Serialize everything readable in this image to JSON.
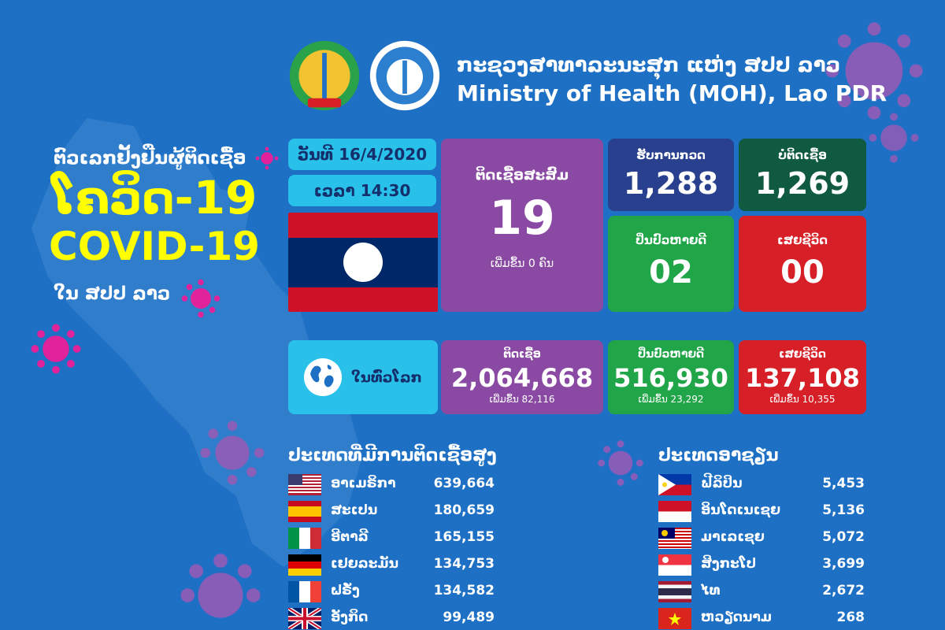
{
  "header": {
    "lao_title": "ກະຊວງສາທາລະນະສຸກ ແຫ່ງ ສປປ ລາວ",
    "en_title": "Ministry of Health (MOH), Lao PDR"
  },
  "titles": {
    "subtitle": "ຕົວເລກຢັ້ງຢືນຜູ້ຕິດເຊື້ອ",
    "big_lao": "ໂຄວິດ-19",
    "big_en": "COVID-19",
    "place": "ໃນ ສປປ ລາວ"
  },
  "date_label": "ວັນທີ 16/4/2020",
  "time_label": "ເວລາ 14:30",
  "lao_stats": {
    "cumulative": {
      "label": "ຕິດເຊື້ອສະສົມ",
      "value": "19",
      "sub": "ເພີ່ມຂຶ້ນ 0 ຄົນ"
    },
    "tested": {
      "label": "ຮັບການກວດ",
      "value": "1,288"
    },
    "negative": {
      "label": "ບໍ່ຕິດເຊື້ອ",
      "value": "1,269"
    },
    "recovered": {
      "label": "ປິ່ນປົວຫາຍດີ",
      "value": "02"
    },
    "deaths": {
      "label": "ເສຍຊີວິດ",
      "value": "00"
    }
  },
  "world": {
    "label": "ໃນທົ່ວໂລກ",
    "infected": {
      "label": "ຕິດເຊື້ອ",
      "value": "2,064,668",
      "sub": "ເພີ່ມຂຶ້ນ 82,116"
    },
    "recovered": {
      "label": "ປິ່ນປົວຫາຍດີ",
      "value": "516,930",
      "sub": "ເພີ່ມຂຶ້ນ 23,292"
    },
    "deaths": {
      "label": "ເສຍຊີວິດ",
      "value": "137,108",
      "sub": "ເພີ່ມຂຶ້ນ 10,355"
    }
  },
  "top_countries": {
    "title": "ປະເທດທີ່ມີການຕິດເຊື້ອສູງ",
    "rows": [
      {
        "name": "ອາເມຣິກາ",
        "value": "639,664",
        "flag": "us-flag"
      },
      {
        "name": "ສະເປນ",
        "value": "180,659",
        "flag": "spain-flag"
      },
      {
        "name": "ອີຕາລີ",
        "value": "165,155",
        "flag": "italy-flag"
      },
      {
        "name": "ເຢຍລະມັນ",
        "value": "134,753",
        "flag": "germany-flag"
      },
      {
        "name": "ຝຣັ່ງ",
        "value": "134,582",
        "flag": "france-flag"
      },
      {
        "name": "ອັງກິດ",
        "value": "99,489",
        "flag": "uk-flag"
      }
    ]
  },
  "asean": {
    "title": "ປະເທດອາຊຽນ",
    "rows": [
      {
        "name": "ຟີລິປິນ",
        "value": "5,453",
        "flag": "philippines-flag"
      },
      {
        "name": "ອິນໂດເນເຊຍ",
        "value": "5,136",
        "flag": "indonesia-flag"
      },
      {
        "name": "ມາເລເຊຍ",
        "value": "5,072",
        "flag": "malaysia-flag"
      },
      {
        "name": "ສິງກະໂປ",
        "value": "3,699",
        "flag": "singapore-flag"
      },
      {
        "name": "ໄທ",
        "value": "2,672",
        "flag": "thailand-flag"
      },
      {
        "name": "ຫວຽດນາມ",
        "value": "268",
        "flag": "vietnam-flag"
      }
    ]
  },
  "colors": {
    "background": "#1e70c4",
    "title_yellow": "#ffff00",
    "purple": "#8a4aa3",
    "red": "#d61f26",
    "green": "#20a548"
  }
}
